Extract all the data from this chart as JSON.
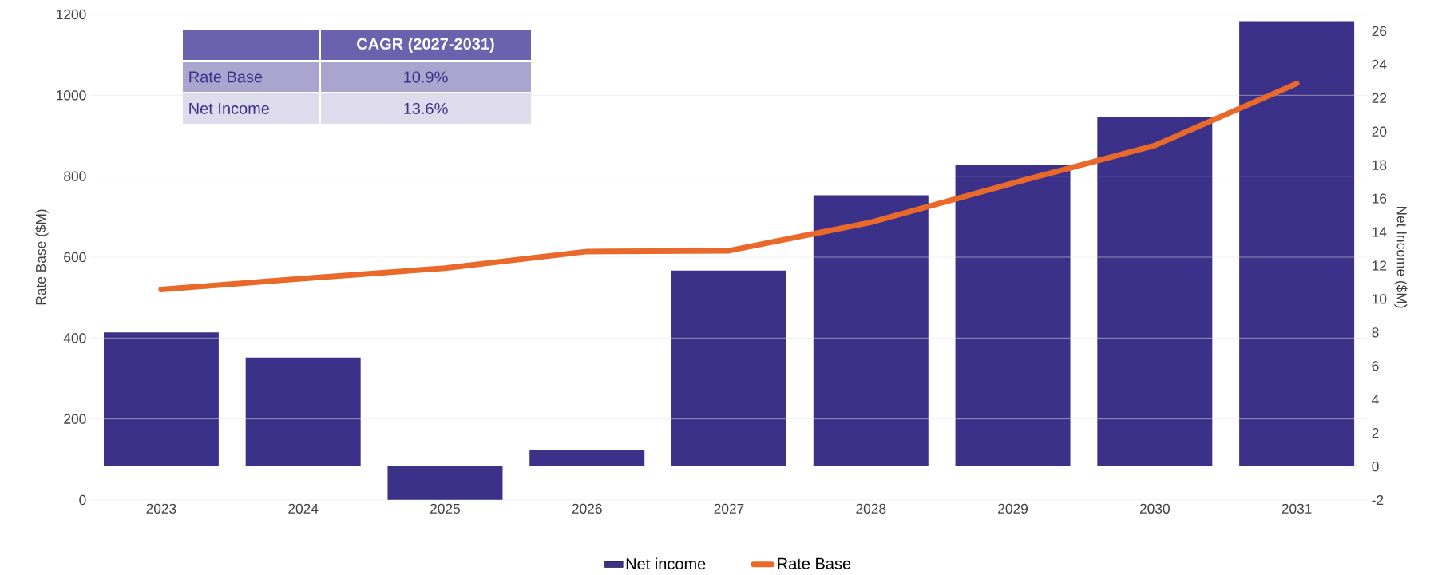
{
  "chart_data": {
    "type": "bar",
    "categories": [
      "2023",
      "2024",
      "2025",
      "2026",
      "2027",
      "2028",
      "2029",
      "2030",
      "2031"
    ],
    "series": [
      {
        "name": "Net income",
        "axis": "y2",
        "color": "#3b3189",
        "values": [
          8.0,
          6.5,
          -2.0,
          1.0,
          11.7,
          16.2,
          18.0,
          20.9,
          26.6
        ]
      },
      {
        "name": "Rate Base",
        "type": "line",
        "axis": "y",
        "color": "#e8692a",
        "values": [
          520,
          547,
          573,
          614,
          616,
          686,
          783,
          876,
          1029
        ]
      }
    ],
    "ylabel": "Rate Base ($M)",
    "y2label": "Net Income ($M)",
    "ylim": [
      0,
      1200
    ],
    "yticks": [
      0,
      200,
      400,
      600,
      800,
      1000,
      1200
    ],
    "y2lim": [
      -2,
      27
    ],
    "y2ticks": [
      -2,
      0,
      2,
      4,
      6,
      8,
      10,
      12,
      14,
      16,
      18,
      20,
      22,
      24,
      26
    ],
    "grid": "y",
    "legend": "bottom",
    "marker": "none",
    "line_style": "solid",
    "annotations": [
      "CAGR (2027-2031)",
      "Rate Base",
      "10.9%",
      "Net Income",
      "13.6%"
    ]
  }
}
